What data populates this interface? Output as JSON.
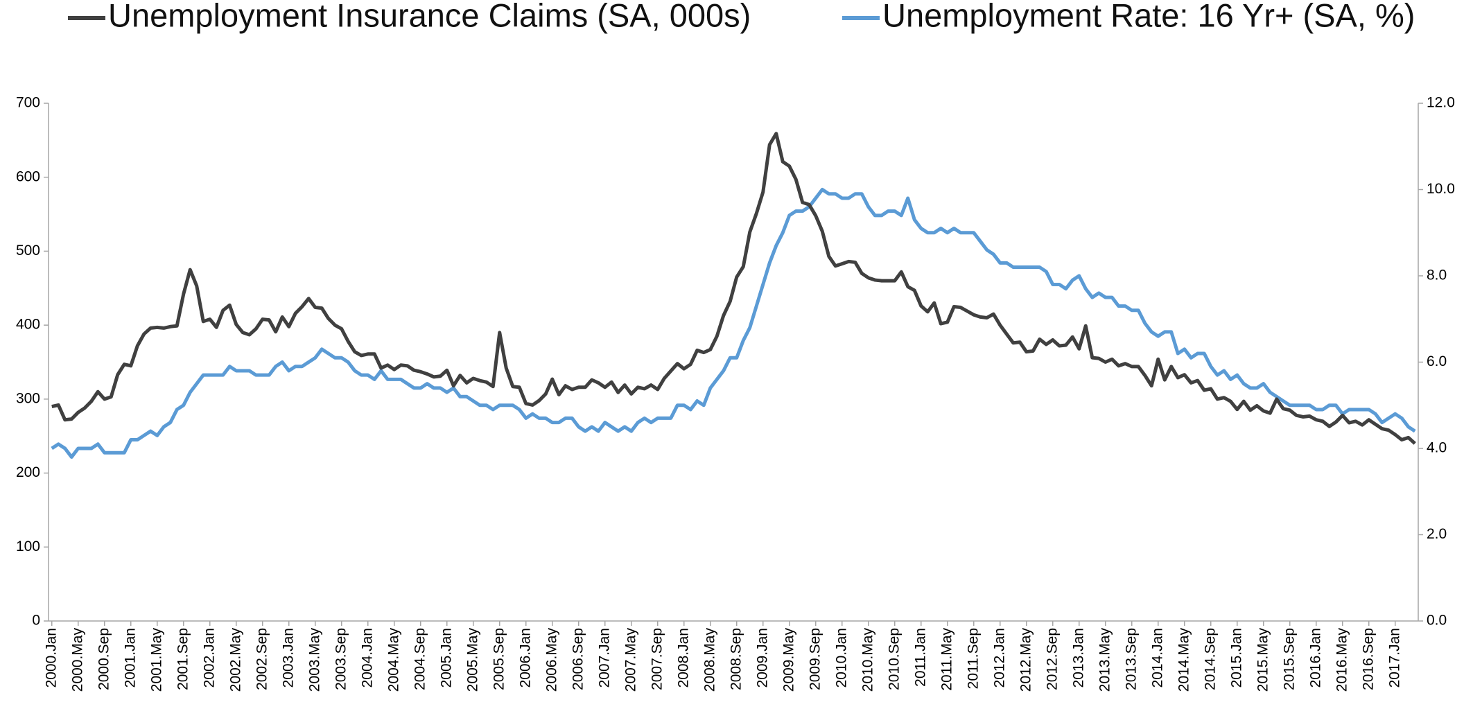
{
  "chart_data": {
    "type": "line",
    "categories": [
      "2000.Jan",
      null,
      null,
      null,
      "2000.May",
      null,
      null,
      null,
      "2000.Sep",
      null,
      null,
      null,
      "2001.Jan",
      null,
      null,
      null,
      "2001.May",
      null,
      null,
      null,
      "2001.Sep",
      null,
      null,
      null,
      "2002.Jan",
      null,
      null,
      null,
      "2002.May",
      null,
      null,
      null,
      "2002.Sep",
      null,
      null,
      null,
      "2003.Jan",
      null,
      null,
      null,
      "2003.May",
      null,
      null,
      null,
      "2003.Sep",
      null,
      null,
      null,
      "2004.Jan",
      null,
      null,
      null,
      "2004.May",
      null,
      null,
      null,
      "2004.Sep",
      null,
      null,
      null,
      "2005.Jan",
      null,
      null,
      null,
      "2005.May",
      null,
      null,
      null,
      "2005.Sep",
      null,
      null,
      null,
      "2006.Jan",
      null,
      null,
      null,
      "2006.May",
      null,
      null,
      null,
      "2006.Sep",
      null,
      null,
      null,
      "2007.Jan",
      null,
      null,
      null,
      "2007.May",
      null,
      null,
      null,
      "2007.Sep",
      null,
      null,
      null,
      "2008.Jan",
      null,
      null,
      null,
      "2008.May",
      null,
      null,
      null,
      "2008.Sep",
      null,
      null,
      null,
      "2009.Jan",
      null,
      null,
      null,
      "2009.May",
      null,
      null,
      null,
      "2009.Sep",
      null,
      null,
      null,
      "2010.Jan",
      null,
      null,
      null,
      "2010.May",
      null,
      null,
      null,
      "2010.Sep",
      null,
      null,
      null,
      "2011.Jan",
      null,
      null,
      null,
      "2011.May",
      null,
      null,
      null,
      "2011.Sep",
      null,
      null,
      null,
      "2012.Jan",
      null,
      null,
      null,
      "2012.May",
      null,
      null,
      null,
      "2012.Sep",
      null,
      null,
      null,
      "2013.Jan",
      null,
      null,
      null,
      "2013.May",
      null,
      null,
      null,
      "2013.Sep",
      null,
      null,
      null,
      "2014.Jan",
      null,
      null,
      null,
      "2014.May",
      null,
      null,
      null,
      "2014.Sep",
      null,
      null,
      null,
      "2015.Jan",
      null,
      null,
      null,
      "2015.May",
      null,
      null,
      null,
      "2015.Sep",
      null,
      null,
      null,
      "2016.Jan",
      null,
      null,
      null,
      "2016.May",
      null,
      null,
      null,
      "2016.Sep",
      null,
      null,
      null,
      "2017.Jan",
      null,
      null,
      null
    ],
    "series": [
      {
        "name": "Unemployment Insurance Claims (SA, 000s)",
        "color": "#404040",
        "axis": "y",
        "values": [
          290,
          292,
          272,
          273,
          282,
          288,
          297,
          310,
          300,
          303,
          333,
          347,
          345,
          372,
          388,
          396,
          397,
          396,
          398,
          399,
          442,
          475,
          453,
          405,
          408,
          397,
          420,
          427,
          401,
          390,
          387,
          395,
          408,
          407,
          391,
          411,
          398,
          416,
          425,
          436,
          424,
          423,
          409,
          400,
          395,
          378,
          364,
          359,
          361,
          361,
          342,
          346,
          340,
          346,
          345,
          339,
          337,
          334,
          330,
          331,
          339,
          318,
          332,
          322,
          328,
          325,
          323,
          317,
          390,
          342,
          317,
          316,
          294,
          292,
          298,
          307,
          327,
          306,
          318,
          313,
          316,
          316,
          326,
          322,
          316,
          323,
          309,
          319,
          307,
          316,
          314,
          319,
          313,
          328,
          338,
          348,
          341,
          347,
          366,
          363,
          367,
          385,
          413,
          432,
          465,
          479,
          526,
          551,
          580,
          644,
          659,
          621,
          615,
          597,
          566,
          563,
          548,
          527,
          493,
          480,
          483,
          486,
          485,
          470,
          464,
          461,
          460,
          460,
          460,
          472,
          452,
          447,
          426,
          418,
          430,
          402,
          404,
          425,
          424,
          419,
          414,
          411,
          410,
          415,
          400,
          388,
          376,
          377,
          364,
          365,
          381,
          374,
          380,
          372,
          373,
          384,
          368,
          399,
          356,
          355,
          350,
          354,
          345,
          348,
          344,
          344,
          332,
          318,
          354,
          326,
          344,
          329,
          333,
          322,
          325,
          312,
          314,
          300,
          302,
          297,
          286,
          297,
          285,
          291,
          284,
          281,
          300,
          287,
          285,
          278,
          276,
          277,
          272,
          270,
          263,
          269,
          278,
          268,
          270,
          265,
          272,
          266,
          260,
          258,
          252,
          245,
          248,
          240
        ]
      },
      {
        "name": "Unemployment Rate: 16 Yr+ (SA, %)",
        "color": "#5b9bd5",
        "axis": "y2",
        "values": [
          4.0,
          4.1,
          4.0,
          3.8,
          4.0,
          4.0,
          4.0,
          4.1,
          3.9,
          3.9,
          3.9,
          3.9,
          4.2,
          4.2,
          4.3,
          4.4,
          4.3,
          4.5,
          4.6,
          4.9,
          5.0,
          5.3,
          5.5,
          5.7,
          5.7,
          5.7,
          5.7,
          5.9,
          5.8,
          5.8,
          5.8,
          5.7,
          5.7,
          5.7,
          5.9,
          6.0,
          5.8,
          5.9,
          5.9,
          6.0,
          6.1,
          6.3,
          6.2,
          6.1,
          6.1,
          6.0,
          5.8,
          5.7,
          5.7,
          5.6,
          5.8,
          5.6,
          5.6,
          5.6,
          5.5,
          5.4,
          5.4,
          5.5,
          5.4,
          5.4,
          5.3,
          5.4,
          5.2,
          5.2,
          5.1,
          5.0,
          5.0,
          4.9,
          5.0,
          5.0,
          5.0,
          4.9,
          4.7,
          4.8,
          4.7,
          4.7,
          4.6,
          4.6,
          4.7,
          4.7,
          4.5,
          4.4,
          4.5,
          4.4,
          4.6,
          4.5,
          4.4,
          4.5,
          4.4,
          4.6,
          4.7,
          4.6,
          4.7,
          4.7,
          4.7,
          5.0,
          5.0,
          4.9,
          5.1,
          5.0,
          5.4,
          5.6,
          5.8,
          6.1,
          6.1,
          6.5,
          6.8,
          7.3,
          7.8,
          8.3,
          8.7,
          9.0,
          9.4,
          9.5,
          9.5,
          9.6,
          9.8,
          10.0,
          9.9,
          9.9,
          9.8,
          9.8,
          9.9,
          9.9,
          9.6,
          9.4,
          9.4,
          9.5,
          9.5,
          9.4,
          9.8,
          9.3,
          9.1,
          9.0,
          9.0,
          9.1,
          9.0,
          9.1,
          9.0,
          9.0,
          9.0,
          8.8,
          8.6,
          8.5,
          8.3,
          8.3,
          8.2,
          8.2,
          8.2,
          8.2,
          8.2,
          8.1,
          7.8,
          7.8,
          7.7,
          7.9,
          8.0,
          7.7,
          7.5,
          7.6,
          7.5,
          7.5,
          7.3,
          7.3,
          7.2,
          7.2,
          6.9,
          6.7,
          6.6,
          6.7,
          6.7,
          6.2,
          6.3,
          6.1,
          6.2,
          6.2,
          5.9,
          5.7,
          5.8,
          5.6,
          5.7,
          5.5,
          5.4,
          5.4,
          5.5,
          5.3,
          5.2,
          5.1,
          5.0,
          5.0,
          5.0,
          5.0,
          4.9,
          4.9,
          5.0,
          5.0,
          4.8,
          4.9,
          4.9,
          4.9,
          4.9,
          4.8,
          4.6,
          4.7,
          4.8,
          4.7,
          4.5,
          4.4
        ]
      }
    ],
    "ylim": [
      0,
      700
    ],
    "yticks": [
      0,
      100,
      200,
      300,
      400,
      500,
      600,
      700
    ],
    "y2lim": [
      0,
      12
    ],
    "y2ticks": [
      {
        "value": 0,
        "label": "0.0"
      },
      {
        "value": 2,
        "label": "2.0"
      },
      {
        "value": 4,
        "label": "4.0"
      },
      {
        "value": 6,
        "label": "6.0"
      },
      {
        "value": 8,
        "label": "8.0"
      },
      {
        "value": 10,
        "label": "10.0"
      },
      {
        "value": 12,
        "label": "12.0"
      }
    ],
    "grid": false,
    "legend": "top"
  }
}
